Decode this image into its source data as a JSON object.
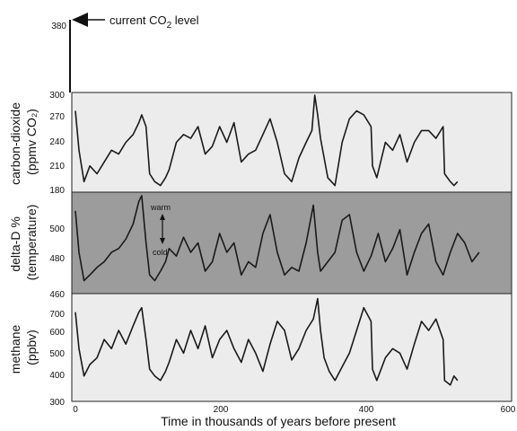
{
  "chart_data": {
    "type": "line",
    "xlabel": "Time in thousands of years before present",
    "xlim": [
      0,
      600
    ],
    "xticks": [
      "0",
      "200",
      "400",
      "600"
    ],
    "annotation": {
      "text": "current CO",
      "subscript": "2",
      "suffix": " level",
      "value": 380,
      "value_label": "380"
    },
    "panels": [
      {
        "key": "co2",
        "ylabel_lines": [
          "carbon-dioxide",
          "(ppmv CO₂)"
        ],
        "ylim": [
          180,
          300
        ],
        "yticks": [
          "180",
          "210",
          "240",
          "270",
          "300"
        ],
        "background": "#ececec",
        "series": {
          "x": [
            0,
            5,
            12,
            20,
            30,
            40,
            50,
            60,
            70,
            80,
            88,
            92,
            98,
            103,
            110,
            118,
            125,
            130,
            140,
            150,
            160,
            170,
            180,
            190,
            200,
            210,
            220,
            230,
            240,
            250,
            260,
            270,
            280,
            290,
            300,
            310,
            320,
            328,
            332,
            336,
            340,
            350,
            360,
            370,
            380,
            390,
            400,
            410,
            412,
            418,
            430,
            440,
            450,
            460,
            470,
            480,
            490,
            500,
            510,
            512,
            520,
            525,
            530
          ],
          "y": [
            280,
            230,
            190,
            210,
            200,
            215,
            230,
            225,
            240,
            250,
            265,
            275,
            260,
            200,
            190,
            185,
            195,
            205,
            240,
            250,
            245,
            260,
            225,
            235,
            260,
            240,
            265,
            215,
            225,
            230,
            250,
            270,
            240,
            200,
            190,
            220,
            240,
            255,
            300,
            275,
            245,
            195,
            185,
            240,
            270,
            280,
            275,
            260,
            210,
            195,
            240,
            230,
            250,
            215,
            240,
            255,
            255,
            245,
            260,
            200,
            190,
            185,
            190
          ]
        }
      },
      {
        "key": "deltaD",
        "ylabel_lines": [
          "delta-D %",
          "(temperature)"
        ],
        "ylim": [
          440,
          390
        ],
        "yticks": [
          "440",
          "420",
          "400",
          "390"
        ],
        "tick_labels_printed": [
          "460",
          "480",
          "500"
        ],
        "background": "#9c9c9c",
        "inset": {
          "warm": "warm",
          "cold": "cold"
        },
        "series": {
          "x": [
            0,
            5,
            12,
            20,
            30,
            40,
            50,
            60,
            70,
            80,
            88,
            92,
            98,
            103,
            110,
            118,
            125,
            130,
            140,
            150,
            160,
            170,
            180,
            190,
            200,
            210,
            220,
            230,
            240,
            250,
            260,
            270,
            280,
            290,
            300,
            310,
            320,
            330,
            336,
            340,
            350,
            360,
            370,
            380,
            390,
            400,
            410,
            420,
            430,
            440,
            450,
            460,
            470,
            480,
            490,
            500,
            510,
            520,
            530,
            540,
            550,
            560
          ],
          "y": [
            398,
            420,
            435,
            432,
            428,
            425,
            420,
            418,
            413,
            405,
            393,
            390,
            415,
            432,
            435,
            430,
            425,
            418,
            422,
            412,
            420,
            415,
            430,
            425,
            410,
            420,
            415,
            432,
            425,
            428,
            410,
            400,
            420,
            432,
            428,
            430,
            415,
            395,
            420,
            430,
            425,
            420,
            403,
            400,
            420,
            430,
            422,
            410,
            425,
            418,
            408,
            432,
            420,
            410,
            405,
            425,
            432,
            420,
            410,
            415,
            425,
            420
          ]
        }
      },
      {
        "key": "methane",
        "ylabel_lines": [
          "methane",
          "(ppbv)"
        ],
        "ylim": [
          300,
          750
        ],
        "yticks": [
          "300",
          "400",
          "500",
          "600",
          "700"
        ],
        "background": "#ececec",
        "series": {
          "x": [
            0,
            5,
            12,
            20,
            30,
            40,
            50,
            60,
            70,
            80,
            88,
            92,
            98,
            103,
            110,
            118,
            125,
            130,
            140,
            150,
            160,
            170,
            180,
            190,
            200,
            210,
            220,
            230,
            240,
            250,
            260,
            270,
            280,
            290,
            300,
            310,
            320,
            330,
            336,
            340,
            345,
            352,
            360,
            370,
            380,
            390,
            400,
            410,
            412,
            418,
            430,
            440,
            450,
            460,
            470,
            480,
            490,
            500,
            510,
            512,
            520,
            525,
            530
          ],
          "y": [
            680,
            520,
            400,
            450,
            480,
            560,
            520,
            600,
            540,
            620,
            680,
            700,
            560,
            430,
            400,
            380,
            420,
            460,
            560,
            500,
            600,
            520,
            620,
            480,
            560,
            600,
            520,
            460,
            560,
            500,
            420,
            540,
            640,
            600,
            470,
            520,
            600,
            650,
            740,
            600,
            480,
            420,
            380,
            440,
            500,
            600,
            700,
            640,
            430,
            380,
            480,
            520,
            500,
            430,
            540,
            640,
            600,
            650,
            560,
            380,
            360,
            400,
            380
          ]
        }
      }
    ]
  }
}
